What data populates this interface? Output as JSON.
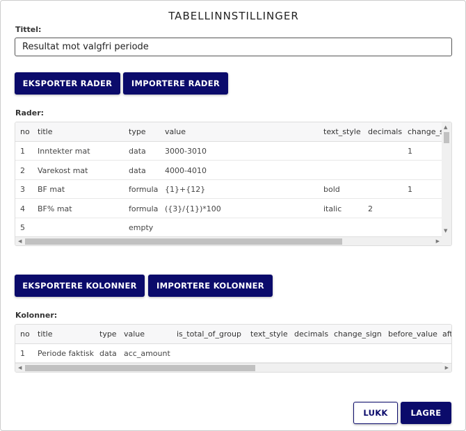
{
  "dialog": {
    "title": "TABELLINNSTILLINGER"
  },
  "title_field": {
    "label": "Tittel:",
    "value": "Resultat mot valgfri periode"
  },
  "rows_section": {
    "export_label": "EKSPORTER RADER",
    "import_label": "IMPORTERE RADER",
    "label": "Rader:",
    "columns": [
      "no",
      "title",
      "type",
      "value",
      "text_style",
      "decimals",
      "change_s"
    ],
    "rows": [
      [
        "1",
        "Inntekter mat",
        "data",
        "3000-3010",
        "",
        "",
        "1"
      ],
      [
        "2",
        "Varekost mat",
        "data",
        "4000-4010",
        "",
        "",
        ""
      ],
      [
        "3",
        "BF mat",
        "formula",
        "{1}+{12}",
        "bold",
        "",
        "1"
      ],
      [
        "4",
        "BF% mat",
        "formula",
        "({3}/{1})*100",
        "italic",
        "2",
        ""
      ],
      [
        "5",
        "",
        "empty",
        "",
        "",
        "",
        ""
      ]
    ]
  },
  "columns_section": {
    "export_label": "EKSPORTERE KOLONNER",
    "import_label": "IMPORTERE KOLONNER",
    "label": "Kolonner:",
    "columns": [
      "no",
      "title",
      "type",
      "value",
      "is_total_of_group",
      "text_style",
      "decimals",
      "change_sign",
      "before_value",
      "aft"
    ],
    "rows": [
      [
        "1",
        "Periode faktisk",
        "data",
        "acc_amount",
        "",
        "",
        "",
        "",
        "",
        ""
      ]
    ]
  },
  "footer": {
    "close_label": "LUKK",
    "save_label": "LAGRE"
  },
  "colors": {
    "primary": "#0b0b6b"
  }
}
